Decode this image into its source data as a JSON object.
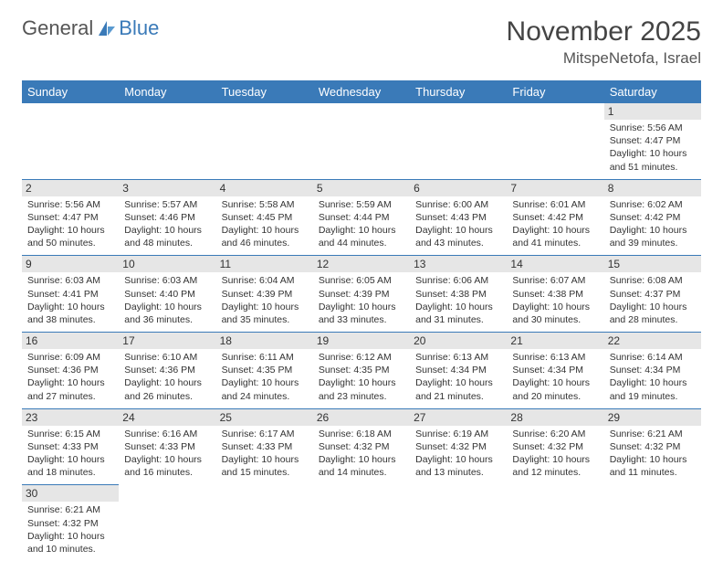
{
  "brand": {
    "name_a": "General",
    "name_b": "Blue"
  },
  "title": "November 2025",
  "location": "MitspeNetofa, Israel",
  "header_bg": "#3a7ab8",
  "header_fg": "#ffffff",
  "daybar_bg": "#e6e6e6",
  "divider_color": "#3a7ab8",
  "cell_font_size": 10.5,
  "days": [
    "Sunday",
    "Monday",
    "Tuesday",
    "Wednesday",
    "Thursday",
    "Friday",
    "Saturday"
  ],
  "weeks": [
    [
      null,
      null,
      null,
      null,
      null,
      null,
      {
        "n": "1",
        "sr": "5:56 AM",
        "ss": "4:47 PM",
        "dl": "10 hours and 51 minutes."
      }
    ],
    [
      {
        "n": "2",
        "sr": "5:56 AM",
        "ss": "4:47 PM",
        "dl": "10 hours and 50 minutes."
      },
      {
        "n": "3",
        "sr": "5:57 AM",
        "ss": "4:46 PM",
        "dl": "10 hours and 48 minutes."
      },
      {
        "n": "4",
        "sr": "5:58 AM",
        "ss": "4:45 PM",
        "dl": "10 hours and 46 minutes."
      },
      {
        "n": "5",
        "sr": "5:59 AM",
        "ss": "4:44 PM",
        "dl": "10 hours and 44 minutes."
      },
      {
        "n": "6",
        "sr": "6:00 AM",
        "ss": "4:43 PM",
        "dl": "10 hours and 43 minutes."
      },
      {
        "n": "7",
        "sr": "6:01 AM",
        "ss": "4:42 PM",
        "dl": "10 hours and 41 minutes."
      },
      {
        "n": "8",
        "sr": "6:02 AM",
        "ss": "4:42 PM",
        "dl": "10 hours and 39 minutes."
      }
    ],
    [
      {
        "n": "9",
        "sr": "6:03 AM",
        "ss": "4:41 PM",
        "dl": "10 hours and 38 minutes."
      },
      {
        "n": "10",
        "sr": "6:03 AM",
        "ss": "4:40 PM",
        "dl": "10 hours and 36 minutes."
      },
      {
        "n": "11",
        "sr": "6:04 AM",
        "ss": "4:39 PM",
        "dl": "10 hours and 35 minutes."
      },
      {
        "n": "12",
        "sr": "6:05 AM",
        "ss": "4:39 PM",
        "dl": "10 hours and 33 minutes."
      },
      {
        "n": "13",
        "sr": "6:06 AM",
        "ss": "4:38 PM",
        "dl": "10 hours and 31 minutes."
      },
      {
        "n": "14",
        "sr": "6:07 AM",
        "ss": "4:38 PM",
        "dl": "10 hours and 30 minutes."
      },
      {
        "n": "15",
        "sr": "6:08 AM",
        "ss": "4:37 PM",
        "dl": "10 hours and 28 minutes."
      }
    ],
    [
      {
        "n": "16",
        "sr": "6:09 AM",
        "ss": "4:36 PM",
        "dl": "10 hours and 27 minutes."
      },
      {
        "n": "17",
        "sr": "6:10 AM",
        "ss": "4:36 PM",
        "dl": "10 hours and 26 minutes."
      },
      {
        "n": "18",
        "sr": "6:11 AM",
        "ss": "4:35 PM",
        "dl": "10 hours and 24 minutes."
      },
      {
        "n": "19",
        "sr": "6:12 AM",
        "ss": "4:35 PM",
        "dl": "10 hours and 23 minutes."
      },
      {
        "n": "20",
        "sr": "6:13 AM",
        "ss": "4:34 PM",
        "dl": "10 hours and 21 minutes."
      },
      {
        "n": "21",
        "sr": "6:13 AM",
        "ss": "4:34 PM",
        "dl": "10 hours and 20 minutes."
      },
      {
        "n": "22",
        "sr": "6:14 AM",
        "ss": "4:34 PM",
        "dl": "10 hours and 19 minutes."
      }
    ],
    [
      {
        "n": "23",
        "sr": "6:15 AM",
        "ss": "4:33 PM",
        "dl": "10 hours and 18 minutes."
      },
      {
        "n": "24",
        "sr": "6:16 AM",
        "ss": "4:33 PM",
        "dl": "10 hours and 16 minutes."
      },
      {
        "n": "25",
        "sr": "6:17 AM",
        "ss": "4:33 PM",
        "dl": "10 hours and 15 minutes."
      },
      {
        "n": "26",
        "sr": "6:18 AM",
        "ss": "4:32 PM",
        "dl": "10 hours and 14 minutes."
      },
      {
        "n": "27",
        "sr": "6:19 AM",
        "ss": "4:32 PM",
        "dl": "10 hours and 13 minutes."
      },
      {
        "n": "28",
        "sr": "6:20 AM",
        "ss": "4:32 PM",
        "dl": "10 hours and 12 minutes."
      },
      {
        "n": "29",
        "sr": "6:21 AM",
        "ss": "4:32 PM",
        "dl": "10 hours and 11 minutes."
      }
    ],
    [
      {
        "n": "30",
        "sr": "6:21 AM",
        "ss": "4:32 PM",
        "dl": "10 hours and 10 minutes."
      },
      null,
      null,
      null,
      null,
      null,
      null
    ]
  ],
  "labels": {
    "sunrise": "Sunrise:",
    "sunset": "Sunset:",
    "daylight": "Daylight:"
  }
}
